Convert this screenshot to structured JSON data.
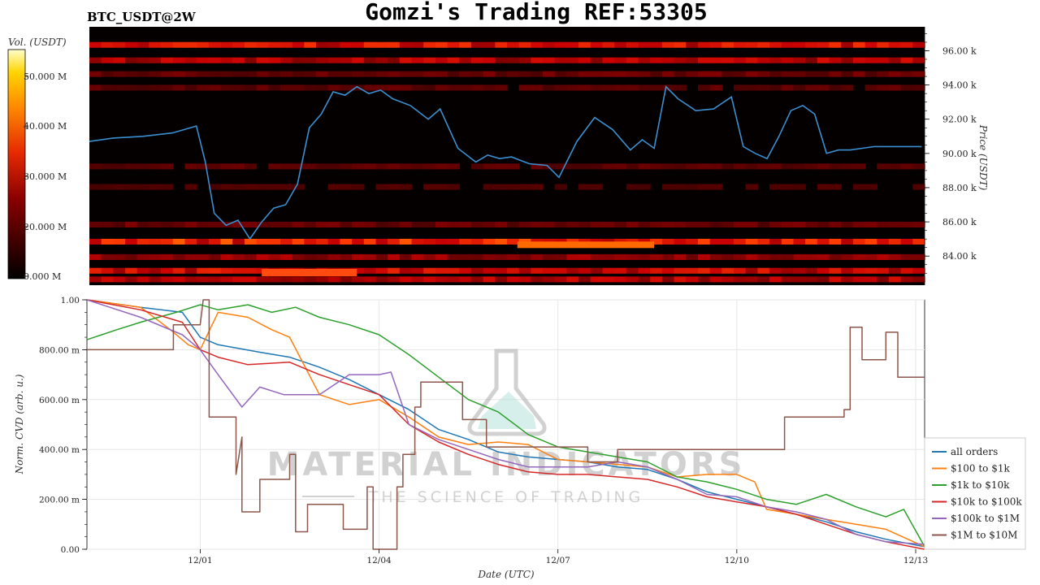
{
  "header": {
    "symbol": "BTC_USDT@2W",
    "title": "Gomzi's Trading REF:53305"
  },
  "colorbar": {
    "label": "Vol. (USDT)",
    "ticks": [
      "0.000 M",
      "20.000 M",
      "30.000 M",
      "40.000 M",
      "50.000 M"
    ]
  },
  "watermark": {
    "line1": "MATERIAL INDICATORS",
    "line2": "THE SCIENCE OF TRADING"
  },
  "chart_data": [
    {
      "type": "heatmap",
      "title": "",
      "ylabel": "Price (USDT)",
      "yticks": [
        "84.00 k",
        "86.00 k",
        "88.00 k",
        "90.00 k",
        "92.00 k",
        "94.00 k",
        "96.00 k"
      ],
      "ylim": [
        82300,
        97400
      ],
      "xlim": [
        -1.9,
        12.15
      ],
      "price_series": {
        "name": "price",
        "x": [
          -1.9,
          -1.5,
          -1.0,
          -0.5,
          -0.1,
          0.05,
          0.2,
          0.4,
          0.6,
          0.8,
          1.0,
          1.2,
          1.4,
          1.6,
          1.8,
          2.0,
          2.2,
          2.4,
          2.6,
          2.8,
          3.0,
          3.2,
          3.5,
          3.8,
          4.0,
          4.3,
          4.6,
          4.8,
          5.0,
          5.2,
          5.5,
          5.8,
          6.0,
          6.3,
          6.6,
          6.9,
          7.2,
          7.4,
          7.6,
          7.8,
          8.0,
          8.3,
          8.6,
          8.9,
          9.1,
          9.3,
          9.5,
          9.7,
          9.9,
          10.1,
          10.3,
          10.5,
          10.7,
          10.9,
          11.1,
          11.3,
          11.5,
          11.7,
          11.9,
          12.1
        ],
        "y": [
          90700,
          90900,
          91000,
          91200,
          91600,
          89500,
          86500,
          85800,
          86100,
          85000,
          86000,
          86800,
          87000,
          88200,
          91500,
          92300,
          93600,
          93400,
          93900,
          93500,
          93700,
          93200,
          92800,
          92000,
          92600,
          90300,
          89500,
          89900,
          89700,
          89800,
          89400,
          89300,
          88600,
          90700,
          92100,
          91400,
          90200,
          90800,
          90300,
          93900,
          93200,
          92500,
          92600,
          93300,
          90400,
          90000,
          89700,
          91000,
          92500,
          92800,
          92300,
          90000,
          90200,
          90200,
          90300,
          90400,
          90400,
          90400,
          90400,
          90400
        ]
      }
    },
    {
      "type": "line",
      "title": "",
      "xlabel": "Date (UTC)",
      "ylabel": "Norm. CVD (arb. u.)",
      "xticks": [
        {
          "value": 0,
          "label": "12/01"
        },
        {
          "value": 3,
          "label": "12/04"
        },
        {
          "value": 6,
          "label": "12/07"
        },
        {
          "value": 9,
          "label": "12/10"
        },
        {
          "value": 12,
          "label": "12/13"
        }
      ],
      "yticks": [
        {
          "value": 0,
          "label": "0.00"
        },
        {
          "value": 0.2,
          "label": "200.00 m"
        },
        {
          "value": 0.4,
          "label": "400.00 m"
        },
        {
          "value": 0.6,
          "label": "600.00 m"
        },
        {
          "value": 0.8,
          "label": "800.00 m"
        },
        {
          "value": 1.0,
          "label": "1.00"
        }
      ],
      "xlim": [
        -1.9,
        12.15
      ],
      "ylim": [
        0,
        1.0
      ],
      "grid": true,
      "legend_position": "right",
      "series": [
        {
          "name": "all orders",
          "color": "#1f77b4",
          "x": [
            -1.9,
            -1.0,
            -0.3,
            0.0,
            0.3,
            1.0,
            1.5,
            2.0,
            2.5,
            3.0,
            3.5,
            4.0,
            4.5,
            5.0,
            5.5,
            6.0,
            6.5,
            7.0,
            7.5,
            8.0,
            8.5,
            9.0,
            9.5,
            10.0,
            10.5,
            11.0,
            11.5,
            12.15
          ],
          "y": [
            1.0,
            0.97,
            0.95,
            0.85,
            0.82,
            0.79,
            0.77,
            0.73,
            0.68,
            0.62,
            0.56,
            0.48,
            0.44,
            0.39,
            0.37,
            0.36,
            0.35,
            0.33,
            0.32,
            0.28,
            0.23,
            0.2,
            0.17,
            0.14,
            0.11,
            0.07,
            0.04,
            0.01
          ]
        },
        {
          "name": "$100 to $1k",
          "color": "#ff7f0e",
          "x": [
            -1.9,
            -1.0,
            -0.5,
            -0.2,
            0.0,
            0.3,
            0.8,
            1.2,
            1.5,
            2.0,
            2.5,
            3.0,
            3.5,
            4.0,
            4.5,
            5.0,
            5.5,
            6.0,
            6.5,
            7.0,
            7.5,
            8.0,
            8.5,
            9.0,
            9.3,
            9.5,
            10.0,
            10.5,
            11.0,
            11.5,
            12.15
          ],
          "y": [
            1.0,
            0.97,
            0.88,
            0.82,
            0.8,
            0.95,
            0.93,
            0.88,
            0.85,
            0.62,
            0.58,
            0.6,
            0.53,
            0.45,
            0.42,
            0.43,
            0.42,
            0.36,
            0.35,
            0.34,
            0.33,
            0.29,
            0.3,
            0.3,
            0.27,
            0.16,
            0.14,
            0.12,
            0.1,
            0.08,
            0.01
          ]
        },
        {
          "name": "$1k to $10k",
          "color": "#2ca02c",
          "x": [
            -1.9,
            -1.4,
            -1.0,
            -0.4,
            0.0,
            0.3,
            0.8,
            1.2,
            1.6,
            2.0,
            2.5,
            3.0,
            3.5,
            4.0,
            4.5,
            5.0,
            5.5,
            6.0,
            6.5,
            7.0,
            7.5,
            8.0,
            8.5,
            9.0,
            9.5,
            10.0,
            10.5,
            11.0,
            11.5,
            11.8,
            12.15
          ],
          "y": [
            0.84,
            0.88,
            0.91,
            0.95,
            0.98,
            0.96,
            0.98,
            0.95,
            0.97,
            0.93,
            0.9,
            0.86,
            0.78,
            0.69,
            0.6,
            0.55,
            0.46,
            0.41,
            0.39,
            0.37,
            0.35,
            0.29,
            0.27,
            0.24,
            0.2,
            0.18,
            0.22,
            0.17,
            0.13,
            0.16,
            0.01
          ]
        },
        {
          "name": "$10k to $100k",
          "color": "#d62728",
          "x": [
            -1.9,
            -1.0,
            -0.3,
            0.0,
            0.3,
            0.8,
            1.5,
            2.0,
            2.5,
            3.0,
            3.5,
            4.0,
            4.5,
            5.0,
            5.5,
            6.0,
            6.5,
            7.0,
            7.5,
            8.0,
            8.5,
            9.0,
            9.5,
            10.0,
            10.5,
            11.0,
            11.5,
            12.15
          ],
          "y": [
            1.0,
            0.96,
            0.91,
            0.8,
            0.77,
            0.74,
            0.75,
            0.7,
            0.66,
            0.62,
            0.5,
            0.43,
            0.38,
            0.34,
            0.31,
            0.3,
            0.3,
            0.29,
            0.28,
            0.25,
            0.21,
            0.19,
            0.17,
            0.14,
            0.1,
            0.06,
            0.03,
            0.0
          ]
        },
        {
          "name": "$100k to $1M",
          "color": "#9467bd",
          "x": [
            -1.9,
            -1.0,
            -0.3,
            0.0,
            0.3,
            0.7,
            1.0,
            1.4,
            2.0,
            2.5,
            3.0,
            3.2,
            3.5,
            4.0,
            4.5,
            5.0,
            5.5,
            6.0,
            6.5,
            7.0,
            7.5,
            8.0,
            8.5,
            9.0,
            9.5,
            10.0,
            10.5,
            11.0,
            11.5,
            12.15
          ],
          "y": [
            1.0,
            0.93,
            0.86,
            0.8,
            0.7,
            0.57,
            0.65,
            0.62,
            0.62,
            0.7,
            0.7,
            0.71,
            0.5,
            0.44,
            0.4,
            0.36,
            0.33,
            0.33,
            0.33,
            0.35,
            0.33,
            0.28,
            0.22,
            0.21,
            0.17,
            0.15,
            0.12,
            0.06,
            0.03,
            0.02
          ]
        },
        {
          "name": "$1M to $10M",
          "color": "#8c564b",
          "x": [
            -1.9,
            -0.45,
            -0.45,
            0.0,
            0.05,
            0.15,
            0.15,
            0.6,
            0.6,
            0.7,
            0.7,
            0.75,
            0.75,
            1.0,
            1.0,
            1.5,
            1.5,
            1.6,
            1.6,
            1.8,
            1.8,
            2.4,
            2.4,
            2.8,
            2.8,
            2.9,
            2.9,
            3.3,
            3.3,
            3.4,
            3.4,
            3.6,
            3.6,
            3.7,
            3.7,
            4.4,
            4.4,
            4.8,
            4.8,
            5.3,
            5.3,
            6.5,
            6.5,
            7.0,
            7.0,
            8.0,
            8.0,
            9.8,
            9.8,
            10.8,
            10.8,
            10.9,
            10.9,
            11.1,
            11.1,
            11.5,
            11.5,
            11.7,
            11.7,
            12.15
          ],
          "y": [
            0.8,
            0.8,
            0.9,
            0.9,
            1.0,
            1.0,
            0.53,
            0.53,
            0.3,
            0.45,
            0.15,
            0.15,
            0.15,
            0.15,
            0.28,
            0.28,
            0.38,
            0.38,
            0.07,
            0.07,
            0.18,
            0.18,
            0.08,
            0.08,
            0.25,
            0.25,
            0.0,
            0.0,
            0.25,
            0.25,
            0.38,
            0.38,
            0.57,
            0.57,
            0.67,
            0.67,
            0.52,
            0.52,
            0.41,
            0.41,
            0.41,
            0.41,
            0.35,
            0.35,
            0.4,
            0.4,
            0.4,
            0.4,
            0.53,
            0.53,
            0.56,
            0.56,
            0.89,
            0.89,
            0.76,
            0.76,
            0.87,
            0.87,
            0.69,
            0.69
          ]
        }
      ]
    }
  ]
}
